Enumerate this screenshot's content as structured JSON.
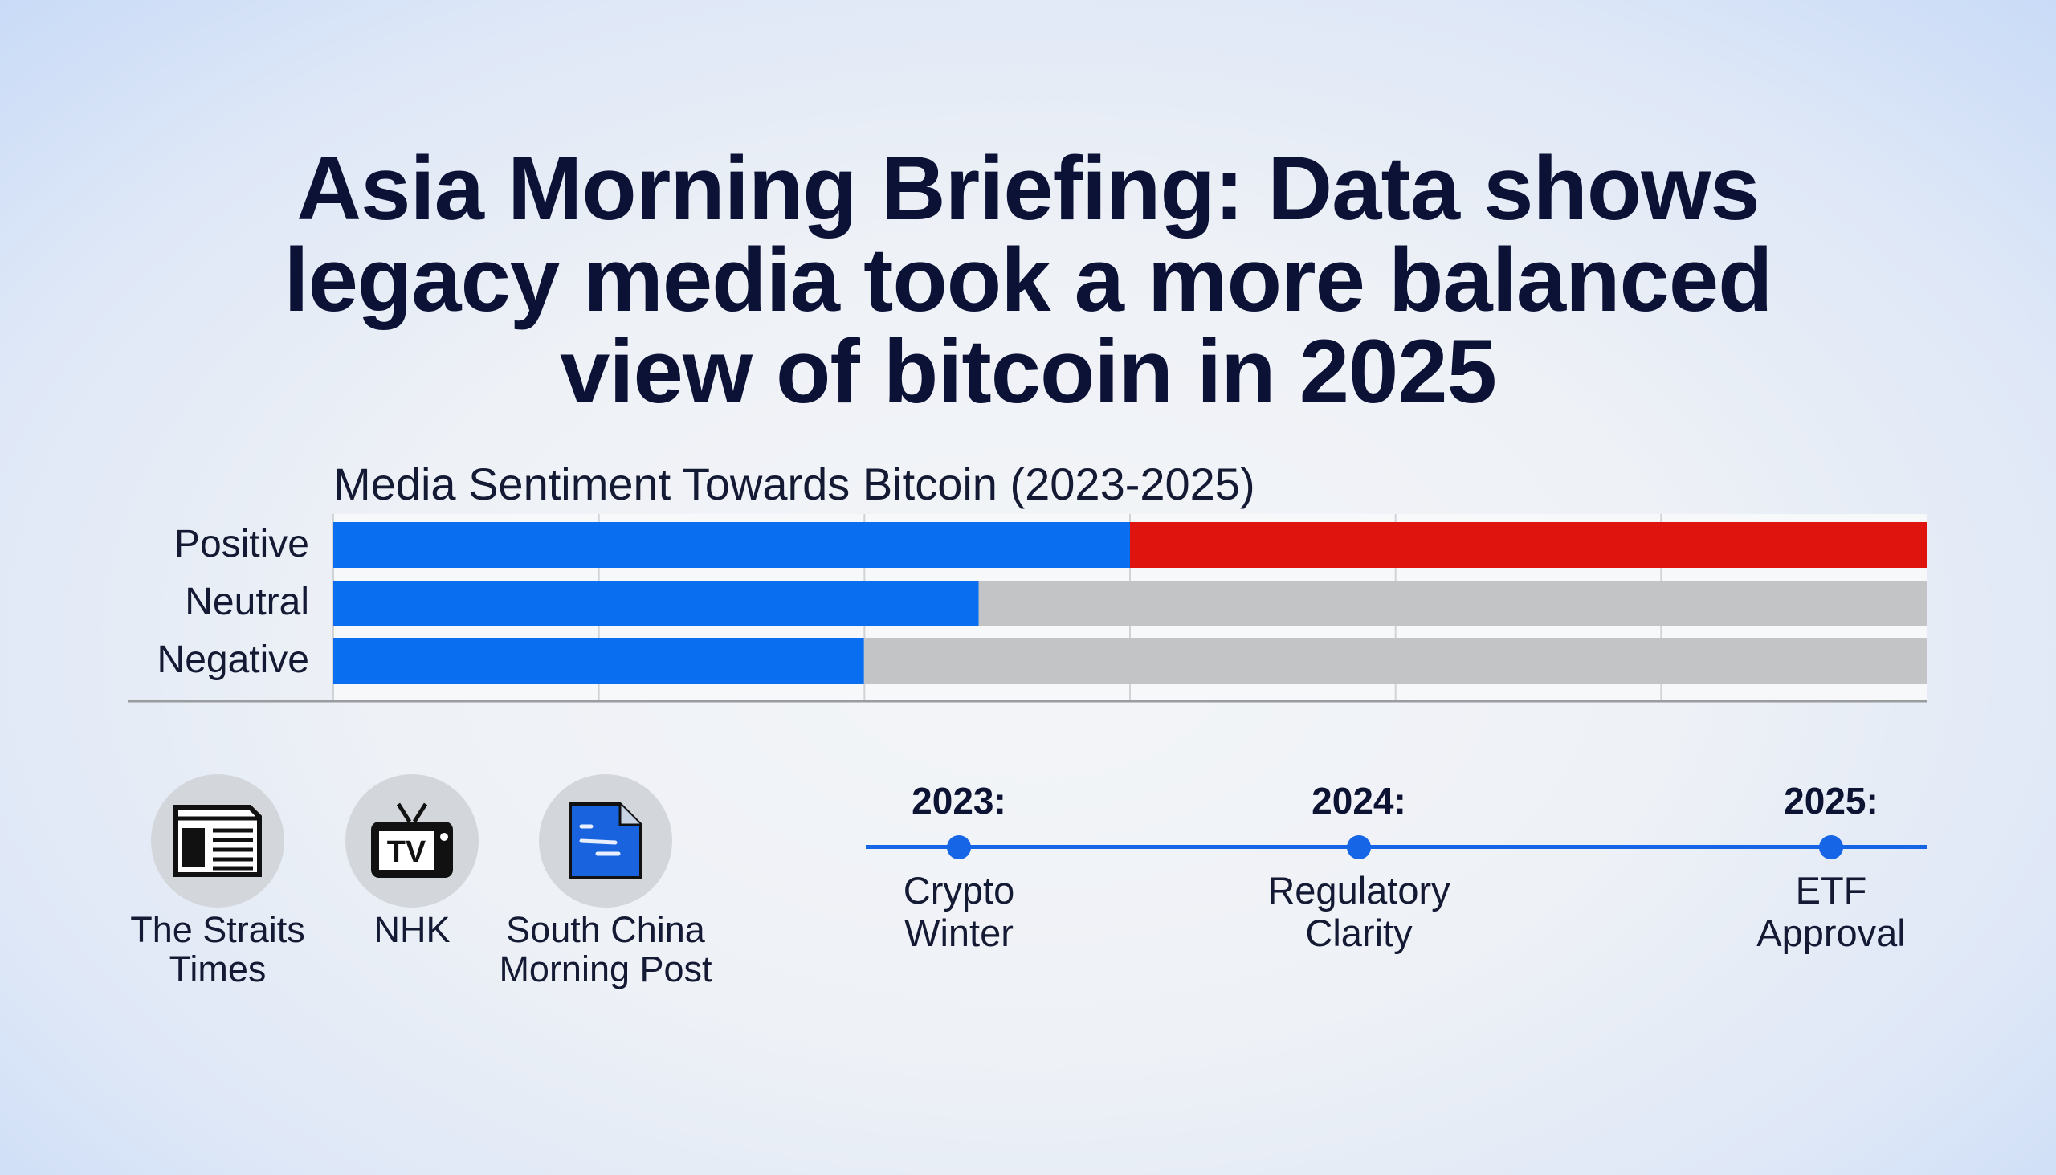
{
  "headline": {
    "line1": "Asia Morning Briefing: Data shows",
    "line2": "legacy media took a more balanced",
    "line3": "view of bitcoin in 2025"
  },
  "chart_data": {
    "type": "bar",
    "orientation": "horizontal",
    "stacked": true,
    "title": "Media Sentiment Towards Bitcoin (2023-2025)",
    "categories": [
      "Positive",
      "Neutral",
      "Negative"
    ],
    "unit": "percent of bar",
    "xlim": [
      0,
      100
    ],
    "grid": true,
    "segments": [
      {
        "category": "Positive",
        "blue": 50,
        "rest": 50,
        "rest_color": "#e0140f"
      },
      {
        "category": "Neutral",
        "blue": 40.5,
        "rest": 59.5,
        "rest_color": "#c3c4c6"
      },
      {
        "category": "Negative",
        "blue": 33.3,
        "rest": 66.7,
        "rest_color": "#c3c4c6"
      }
    ],
    "colors": {
      "blue": "#0a6ef0",
      "red": "#e0140f",
      "gray": "#c3c4c6"
    }
  },
  "sources": [
    {
      "line1": "The Straits",
      "line2": "Times",
      "icon": "newspaper-icon"
    },
    {
      "line1": "NHK",
      "line2": "",
      "icon": "tv-icon"
    },
    {
      "line1": "South China",
      "line2": "Morning Post",
      "icon": "document-icon"
    }
  ],
  "timeline": [
    {
      "year": "2023:",
      "line1": "Crypto",
      "line2": "Winter"
    },
    {
      "year": "2024:",
      "line1": "Regulatory",
      "line2": "Clarity"
    },
    {
      "year": "2025:",
      "line1": "ETF",
      "line2": "Approval"
    }
  ],
  "tv_text": "TV"
}
